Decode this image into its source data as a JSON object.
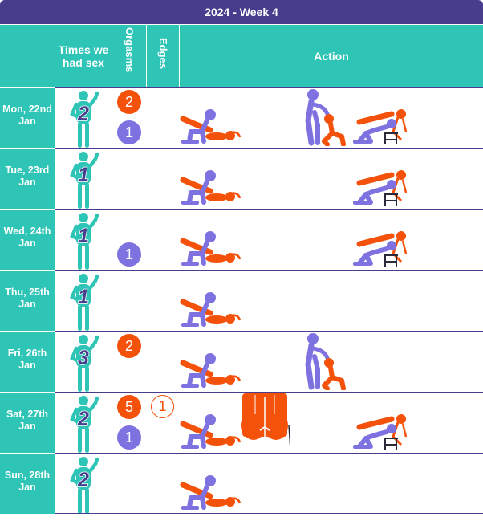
{
  "title": "2024 - Week 4",
  "headers": {
    "times": "Times we had sex",
    "orgasms": "Orgasms",
    "edges": "Edges",
    "action": "Action"
  },
  "colors": {
    "header_bg": "#463d8d",
    "teal": "#2ec4b6",
    "orange": "#f4510a",
    "purple": "#7e72e0"
  },
  "rows": [
    {
      "date_line1": "Mon, 22nd",
      "date_line2": "Jan",
      "times": "2",
      "orgasms_orange": "2",
      "orgasms_purple": "1",
      "edges": ""
    },
    {
      "date_line1": "Tue, 23rd",
      "date_line2": "Jan",
      "times": "1",
      "orgasms_orange": "",
      "orgasms_purple": "",
      "edges": ""
    },
    {
      "date_line1": "Wed, 24th",
      "date_line2": "Jan",
      "times": "1",
      "orgasms_orange": "",
      "orgasms_purple": "1",
      "edges": ""
    },
    {
      "date_line1": "Thu, 25th",
      "date_line2": "Jan",
      "times": "1",
      "orgasms_orange": "",
      "orgasms_purple": "",
      "edges": ""
    },
    {
      "date_line1": "Fri, 26th",
      "date_line2": "Jan",
      "times": "3",
      "orgasms_orange": "2",
      "orgasms_purple": "",
      "edges": ""
    },
    {
      "date_line1": "Sat, 27th",
      "date_line2": "Jan",
      "times": "2",
      "orgasms_orange": "5",
      "orgasms_purple": "1",
      "edges": "1"
    },
    {
      "date_line1": "Sun, 28th",
      "date_line2": "Jan",
      "times": "2",
      "orgasms_orange": "",
      "orgasms_purple": "",
      "edges": ""
    }
  ],
  "actions": [
    [
      "lying-pair-icon",
      "standing-pair-icon",
      "kneeling-pair-icon"
    ],
    [
      "lying-pair-icon",
      "kneeling-pair-icon"
    ],
    [
      "lying-pair-icon",
      "kneeling-pair-icon"
    ],
    [
      "lying-pair-icon"
    ],
    [
      "lying-pair-icon",
      "standing-pair-icon"
    ],
    [
      "lying-pair-icon",
      "hips-closeup-icon",
      "kneeling-pair-icon"
    ],
    [
      "lying-pair-icon"
    ]
  ]
}
